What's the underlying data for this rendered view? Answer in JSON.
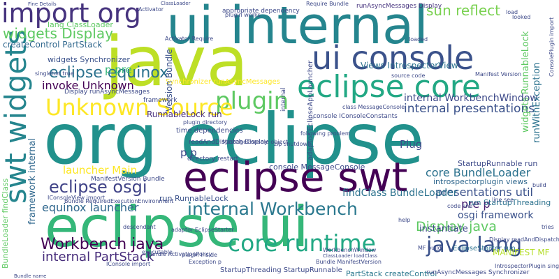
{
  "words": [
    {
      "text": "org eclipse",
      "color": "#21918c"
    },
    {
      "text": "java",
      "color": "#bddf26"
    },
    {
      "text": "ui internal",
      "color": "#25858e"
    },
    {
      "text": "eclipse ui",
      "color": "#35b779"
    },
    {
      "text": "eclipse swt",
      "color": "#440154"
    },
    {
      "text": "ui console",
      "color": "#3b528b"
    },
    {
      "text": "eclipse core",
      "color": "#22a884"
    },
    {
      "text": "import org",
      "color": "#46337e"
    },
    {
      "text": "swt widgets",
      "color": "#25858e"
    },
    {
      "text": "plugin",
      "color": "#5ec962"
    },
    {
      "text": "Unknown Source",
      "color": "#fde725"
    },
    {
      "text": "core runtime",
      "color": "#22a884"
    },
    {
      "text": "Workbench java",
      "color": "#440154"
    },
    {
      "text": "internal Workbench",
      "color": "#2a788e"
    },
    {
      "text": "java lang",
      "color": "#3b528b"
    },
    {
      "text": "eclipse osgi",
      "color": "#404387"
    },
    {
      "text": "widgets Display",
      "color": "#5ec962"
    },
    {
      "text": "sun reflect",
      "color": "#7ad151"
    },
    {
      "text": "eclipse equinox",
      "color": "#2c728e"
    },
    {
      "text": "internal WorkbenchWindow",
      "color": "#3e4a89"
    },
    {
      "text": "internal presentations",
      "color": "#3b528b"
    },
    {
      "text": "core BundleLoader",
      "color": "#2c728e"
    },
    {
      "text": "presentations util",
      "color": "#3b528b"
    },
    {
      "text": "Display java",
      "color": "#5ec962"
    },
    {
      "text": "internal PartStack",
      "color": "#472d7b"
    },
    {
      "text": "osgi framework",
      "color": "#3b528b"
    },
    {
      "text": "launcher Main",
      "color": "#fde725"
    },
    {
      "text": "equinox launcher",
      "color": "#31688e"
    },
    {
      "text": "invoke Unknown",
      "color": "#440154"
    },
    {
      "text": "PartStack createControl",
      "color": "#2a788e"
    },
    {
      "text": "findClass BundleLoader",
      "color": "#2c728e"
    },
    {
      "text": "pre p",
      "color": "#481f70"
    },
    {
      "text": "p pre",
      "color": "#35b779"
    },
    {
      "text": "Plug",
      "color": "#3e4a89"
    },
    {
      "text": "MANIFEST MF",
      "color": "#b5de2b"
    },
    {
      "text": "console MessageConsole",
      "color": "#3e4a89"
    },
    {
      "text": "createControl PartStack",
      "color": "#31688e"
    },
    {
      "text": "lang ClassLoader",
      "color": "#5ec962"
    },
    {
      "text": "widgets Synchronizer",
      "color": "#3b528b"
    },
    {
      "text": "runAsyncMessages Display",
      "color": "#46337e"
    },
    {
      "text": "Views IntrospectorView",
      "color": "#2c728e"
    },
    {
      "text": "Synchronizer runAsyncMessages",
      "color": "#fde725"
    },
    {
      "text": "RunnableLock run",
      "color": "#472d7b"
    },
    {
      "text": "introspectorplugin views",
      "color": "#31688e"
    },
    {
      "text": "run RunnableLock",
      "color": "#3b528b"
    },
    {
      "text": "run StartupThreading",
      "color": "#2c728e"
    },
    {
      "text": "StartupRunnable run",
      "color": "#3e4a89"
    },
    {
      "text": "StartupThreading StartupRunnable",
      "color": "#3e4a89"
    },
    {
      "text": "runAsyncMessages Synchronizer",
      "color": "#3e4a89"
    },
    {
      "text": "instantiate",
      "color": "#3e4a89"
    },
    {
      "text": "Display readAndDispatch",
      "color": "#3e4a89"
    },
    {
      "text": "EclipseStarter run",
      "color": "#2c728e"
    },
    {
      "text": "widgets RunnableLock",
      "color": "#5ec962"
    },
    {
      "text": "runWithException",
      "color": "#2c728e"
    },
    {
      "text": "BundleLoader findClass",
      "color": "#5ec962"
    },
    {
      "text": "Version Bundle",
      "color": "#3b528b"
    },
    {
      "text": "framework internal",
      "color": "#31688e"
    },
    {
      "text": "internal",
      "color": "#3e4a89"
    },
    {
      "text": "readAndDispatch Display",
      "color": "#3e4a89"
    },
    {
      "text": "ManifestVersion Bundle",
      "color": "#3e4a89"
    },
    {
      "text": "console IConsoleConstants",
      "color": "#3e4a89"
    },
    {
      "text": "adaptor EclipseAppLauncher",
      "color": "#3e4a89"
    },
    {
      "text": "source code",
      "color": "#3e4a89"
    },
    {
      "text": "p p",
      "color": "#3e4a89"
    },
    {
      "text": "framework",
      "color": "#3e4a89"
    },
    {
      "text": "appropriate dependency",
      "color": "#3e4a89"
    },
    {
      "text": "ConsolePlugin import",
      "color": "#3e4a89"
    },
    {
      "text": "Activator Require",
      "color": "#3e4a89"
    },
    {
      "text": "Require Bundle",
      "color": "#3e4a89"
    },
    {
      "text": "plugin works",
      "color": "#3e4a89"
    },
    {
      "text": "MANIFEST MF",
      "color": "#3e4a89"
    },
    {
      "text": "class MessageConsole",
      "color": "#3e4a89"
    },
    {
      "text": "MessageConsole object",
      "color": "#3e4a89"
    },
    {
      "text": "zip shutdown",
      "color": "#3e4a89"
    },
    {
      "text": "directory restart",
      "color": "#3e4a89"
    },
    {
      "text": "time dependencies",
      "color": "#3e4a89"
    },
    {
      "text": "plugin directory",
      "color": "#3e4a89"
    },
    {
      "text": "following problem",
      "color": "#3e4a89"
    },
    {
      "text": "Exception p",
      "color": "#3e4a89"
    },
    {
      "text": "WorkbenchWindow",
      "color": "#3e4a89"
    },
    {
      "text": "ClassLoader loadClass",
      "color": "#3e4a89"
    },
    {
      "text": "Bundle ManifestVersion",
      "color": "#3e4a89"
    },
    {
      "text": "Bundle RequiredExecutionEnvironment",
      "color": "#3e4a89"
    },
    {
      "text": "IConsoleView import",
      "color": "#3e4a89"
    },
    {
      "text": "Bundle ActivationPolicy",
      "color": "#3e4a89"
    },
    {
      "text": "IntrospectorPlugin singleton",
      "color": "#3e4a89"
    },
    {
      "text": "MF build",
      "color": "#3e4a89"
    },
    {
      "text": "code line",
      "color": "#3e4a89"
    },
    {
      "text": "line see",
      "color": "#3e4a89"
    },
    {
      "text": "adaptor EclipseStarter",
      "color": "#3e4a89"
    },
    {
      "text": "help",
      "color": "#3e4a89"
    },
    {
      "text": "tries",
      "color": "#3e4a89"
    },
    {
      "text": "build",
      "color": "#3e4a89"
    },
    {
      "text": "Manifest Version",
      "color": "#3e4a89"
    },
    {
      "text": "Fine Details",
      "color": "#3e4a89"
    },
    {
      "text": "Activator",
      "color": "#3e4a89"
    },
    {
      "text": "loaded",
      "color": "#3e4a89"
    },
    {
      "text": "looked",
      "color": "#3e4a89"
    },
    {
      "text": "load",
      "color": "#3e4a89"
    },
    {
      "text": "executable",
      "color": "#3e4a89"
    },
    {
      "text": "descendant",
      "color": "#3e4a89"
    },
    {
      "text": "singleton true",
      "color": "#3e4a89"
    },
    {
      "text": "IConsole import",
      "color": "#3e4a89"
    },
    {
      "text": "Bundle name",
      "color": "#3e4a89"
    },
    {
      "text": "plugin inside",
      "color": "#3e4a89"
    },
    {
      "text": "ClassLoader",
      "color": "#3e4a89"
    },
    {
      "text": "Display runAsyncMessages",
      "color": "#3e4a89"
    }
  ]
}
